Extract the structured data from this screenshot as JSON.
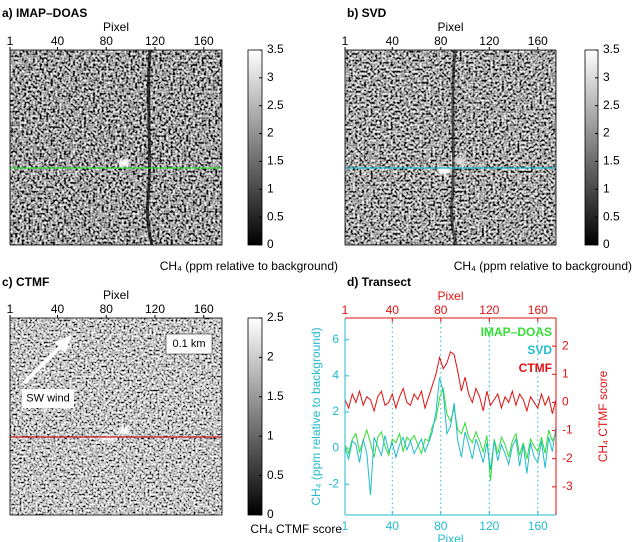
{
  "chart_data": [
    {
      "type": "heatmap",
      "title": "a) IMAP–DOAS",
      "x_label": "Pixel",
      "xlim": [
        1,
        175
      ],
      "xticks": [
        1,
        40,
        80,
        120,
        160
      ],
      "colorbar": {
        "label": "CH₄ (ppm relative to background)",
        "lim": [
          0,
          3.5
        ],
        "ticks": [
          0,
          0.5,
          1,
          1.5,
          2,
          2.5,
          3,
          3.5
        ]
      }
    },
    {
      "type": "heatmap",
      "title": "b) SVD",
      "x_label": "Pixel",
      "xlim": [
        1,
        175
      ],
      "xticks": [
        1,
        40,
        80,
        120,
        160
      ],
      "colorbar": {
        "label": "CH₄ (ppm relative to background)",
        "lim": [
          0,
          3.5
        ],
        "ticks": [
          0,
          0.5,
          1,
          1.5,
          2,
          2.5,
          3,
          3.5
        ]
      }
    },
    {
      "type": "heatmap",
      "title": "c) CTMF",
      "x_label": "Pixel",
      "xlim": [
        1,
        175
      ],
      "xticks": [
        1,
        40,
        80,
        120,
        160
      ],
      "colorbar": {
        "label": "CH₄ CTMF score",
        "lim": [
          0,
          2.5
        ],
        "ticks": [
          0,
          0.5,
          1,
          1.5,
          2,
          2.5
        ]
      },
      "annotations": [
        "0.1 km",
        "SW wind"
      ]
    },
    {
      "type": "line",
      "title": "d) Transect",
      "x_label": "Pixel",
      "y_label": "CH₄ (ppm relative to background)",
      "y2_label": "CH₄ CTMF score",
      "xlim": [
        1,
        175
      ],
      "xticks": [
        1,
        40,
        80,
        120,
        160
      ],
      "grid": true,
      "ylim": [
        -3.7,
        7.2
      ],
      "yticks": [
        -2,
        0,
        2,
        4,
        6
      ],
      "y_color": "#22bbcc",
      "y2lim": [
        -4,
        3
      ],
      "y2ticks": [
        -3,
        -2,
        -1,
        0,
        1,
        2
      ],
      "y2_color": "#e01010",
      "x": [
        1,
        4,
        7,
        10,
        13,
        16,
        19,
        22,
        25,
        28,
        31,
        34,
        37,
        40,
        43,
        46,
        49,
        52,
        55,
        58,
        61,
        64,
        67,
        70,
        73,
        76,
        79,
        82,
        85,
        88,
        91,
        94,
        97,
        100,
        103,
        106,
        109,
        112,
        115,
        118,
        121,
        124,
        127,
        130,
        133,
        136,
        139,
        142,
        145,
        148,
        151,
        154,
        157,
        160,
        163,
        166,
        169,
        172,
        175
      ],
      "series": [
        {
          "name": "IMAP–DOAS",
          "color": "#33dd33",
          "values": [
            0.2,
            -0.3,
            0.5,
            0.8,
            -0.2,
            0.4,
            1.0,
            0.3,
            -0.5,
            0.6,
            0.9,
            0.1,
            -0.4,
            0.5,
            0.3,
            0.8,
            -0.2,
            0.6,
            0.4,
            0.7,
            0.2,
            -0.3,
            0.5,
            0.4,
            1.2,
            1.6,
            2.8,
            3.3,
            1.9,
            1.5,
            2.2,
            1.0,
            0.8,
            1.4,
            0.6,
            0.3,
            0.9,
            0.4,
            -0.2,
            0.7,
            -1.8,
            0.5,
            -0.3,
            0.6,
            0.2,
            -0.5,
            0.4,
            0.8,
            -0.4,
            0.3,
            -0.6,
            0.5,
            0.1,
            -0.2,
            0.6,
            -0.3,
            1.0,
            0.4,
            0.8
          ]
        },
        {
          "name": "SVD",
          "color": "#22bbcc",
          "values": [
            0.0,
            -0.6,
            0.4,
            0.2,
            -0.8,
            0.5,
            -0.3,
            -2.6,
            0.6,
            0.1,
            -0.4,
            0.7,
            -0.2,
            0.3,
            -0.5,
            0.2,
            0.6,
            -0.1,
            0.4,
            -0.3,
            0.1,
            0.5,
            -0.2,
            0.3,
            0.9,
            2.0,
            3.9,
            3.1,
            0.8,
            1.2,
            2.5,
            0.4,
            -0.5,
            0.9,
            0.2,
            -0.6,
            0.5,
            -0.1,
            -0.8,
            0.3,
            -1.2,
            0.4,
            -0.7,
            0.2,
            -0.3,
            -0.9,
            0.1,
            0.5,
            -1.0,
            0.2,
            -1.4,
            0.3,
            -0.5,
            -0.8,
            0.4,
            -1.1,
            0.6,
            -0.2,
            1.2
          ]
        },
        {
          "name": "CTMF",
          "color": "#e01010",
          "axis": "y2",
          "values": [
            0.1,
            -0.2,
            0.3,
            0.0,
            0.4,
            -0.1,
            0.2,
            0.1,
            -0.3,
            0.2,
            0.4,
            -0.1,
            0.0,
            0.3,
            -0.2,
            0.2,
            0.5,
            0.0,
            -0.1,
            0.3,
            0.1,
            0.4,
            -0.2,
            0.2,
            0.6,
            1.0,
            1.6,
            1.2,
            1.4,
            1.8,
            1.7,
            1.1,
            0.4,
            0.9,
            0.3,
            0.0,
            0.5,
            0.2,
            -0.3,
            0.4,
            -0.1,
            0.1,
            0.3,
            -0.2,
            0.2,
            0.0,
            0.4,
            -0.1,
            0.3,
            0.1,
            -0.3,
            0.2,
            0.0,
            -0.2,
            0.3,
            -0.1,
            0.2,
            -0.4,
            0.1
          ]
        }
      ]
    }
  ]
}
